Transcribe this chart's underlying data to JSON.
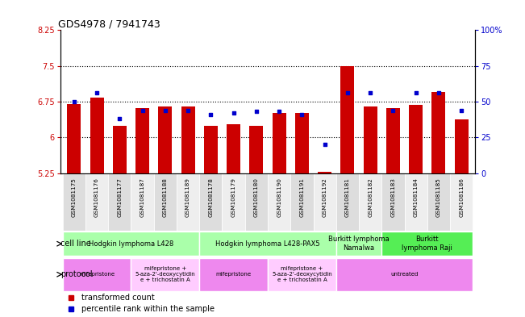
{
  "title": "GDS4978 / 7941743",
  "samples": [
    "GSM1081175",
    "GSM1081176",
    "GSM1081177",
    "GSM1081187",
    "GSM1081188",
    "GSM1081189",
    "GSM1081178",
    "GSM1081179",
    "GSM1081180",
    "GSM1081190",
    "GSM1081191",
    "GSM1081192",
    "GSM1081181",
    "GSM1081182",
    "GSM1081183",
    "GSM1081184",
    "GSM1081185",
    "GSM1081186"
  ],
  "red_values": [
    6.7,
    6.83,
    6.25,
    6.62,
    6.65,
    6.65,
    6.25,
    6.28,
    6.25,
    6.52,
    6.52,
    5.28,
    7.5,
    6.65,
    6.62,
    6.68,
    6.95,
    6.38
  ],
  "blue_pct": [
    50,
    56,
    38,
    44,
    44,
    44,
    41,
    42,
    43,
    43,
    41,
    20,
    56,
    56,
    44,
    56,
    56,
    44
  ],
  "ylim_left": [
    5.25,
    8.25
  ],
  "ylim_right": [
    0,
    100
  ],
  "yticks_left": [
    5.25,
    6.0,
    6.75,
    7.5,
    8.25
  ],
  "ytick_labels_left": [
    "5.25",
    "6",
    "6.75",
    "7.5",
    "8.25"
  ],
  "yticks_right": [
    0,
    25,
    50,
    75,
    100
  ],
  "ytick_labels_right": [
    "0",
    "25",
    "50",
    "75",
    "100%"
  ],
  "hlines": [
    6.0,
    6.75,
    7.5
  ],
  "bar_color": "#CC0000",
  "dot_color": "#0000CC",
  "bar_bottom": 5.25,
  "cell_line_groups": [
    {
      "label": "Hodgkin lymphoma L428",
      "start": 0,
      "end": 5,
      "color": "#aaffaa"
    },
    {
      "label": "Hodgkin lymphoma L428-PAX5",
      "start": 6,
      "end": 11,
      "color": "#aaffaa"
    },
    {
      "label": "Burkitt lymphoma\nNamalwa",
      "start": 12,
      "end": 13,
      "color": "#aaffaa"
    },
    {
      "label": "Burkitt\nlymphoma Raji",
      "start": 14,
      "end": 17,
      "color": "#55ee55"
    }
  ],
  "protocol_groups": [
    {
      "label": "mifepristone",
      "start": 0,
      "end": 2,
      "color": "#ee88ee"
    },
    {
      "label": "mifepristone +\n5-aza-2'-deoxycytidin\ne + trichostatin A",
      "start": 3,
      "end": 5,
      "color": "#ffccff"
    },
    {
      "label": "mifepristone",
      "start": 6,
      "end": 8,
      "color": "#ee88ee"
    },
    {
      "label": "mifepristone +\n5-aza-2'-deoxycytidin\ne + trichostatin A",
      "start": 9,
      "end": 11,
      "color": "#ffccff"
    },
    {
      "label": "untreated",
      "start": 12,
      "end": 17,
      "color": "#ee88ee"
    }
  ],
  "legend_red": "transformed count",
  "legend_blue": "percentile rank within the sample",
  "cell_line_label": "cell line",
  "protocol_label": "protocol",
  "left_color": "#CC0000",
  "right_color": "#0000CC"
}
